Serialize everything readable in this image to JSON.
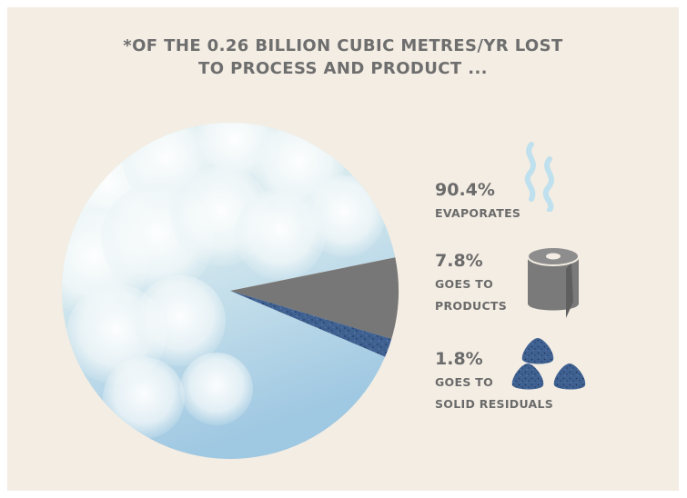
{
  "title_lines": [
    "*OF THE 0.26 BILLION CUBIC METRES/YR LOST",
    "TO PROCESS AND PRODUCT ..."
  ],
  "chart_data": {
    "type": "pie",
    "title": "*OF THE 0.26 BILLION CUBIC METRES/YR LOST TO PROCESS AND PRODUCT ...",
    "slices": [
      {
        "value": 90.4,
        "label_pct": "90.4%",
        "label_lines": [
          "EVAPORATES"
        ],
        "fill": "clouds",
        "icon": "steam-icon"
      },
      {
        "value": 7.8,
        "label_pct": "7.8%",
        "label_lines": [
          "GOES TO",
          "PRODUCTS"
        ],
        "fill": "#777777",
        "icon": "paper-roll-icon"
      },
      {
        "value": 1.8,
        "label_pct": "1.8%",
        "label_lines": [
          "GOES TO",
          "SOLID RESIDUALS"
        ],
        "fill": "#3d5f8f",
        "icon": "residual-pellets-icon"
      }
    ]
  },
  "colors": {
    "background": "#f3ede3",
    "text": "#6b6b6b",
    "product_slice": "#777777",
    "residual_slice": "#3d5f8f",
    "sky_light": "#e6f1f4",
    "sky_blue": "#a9cde4",
    "steam": "#b8dced"
  }
}
